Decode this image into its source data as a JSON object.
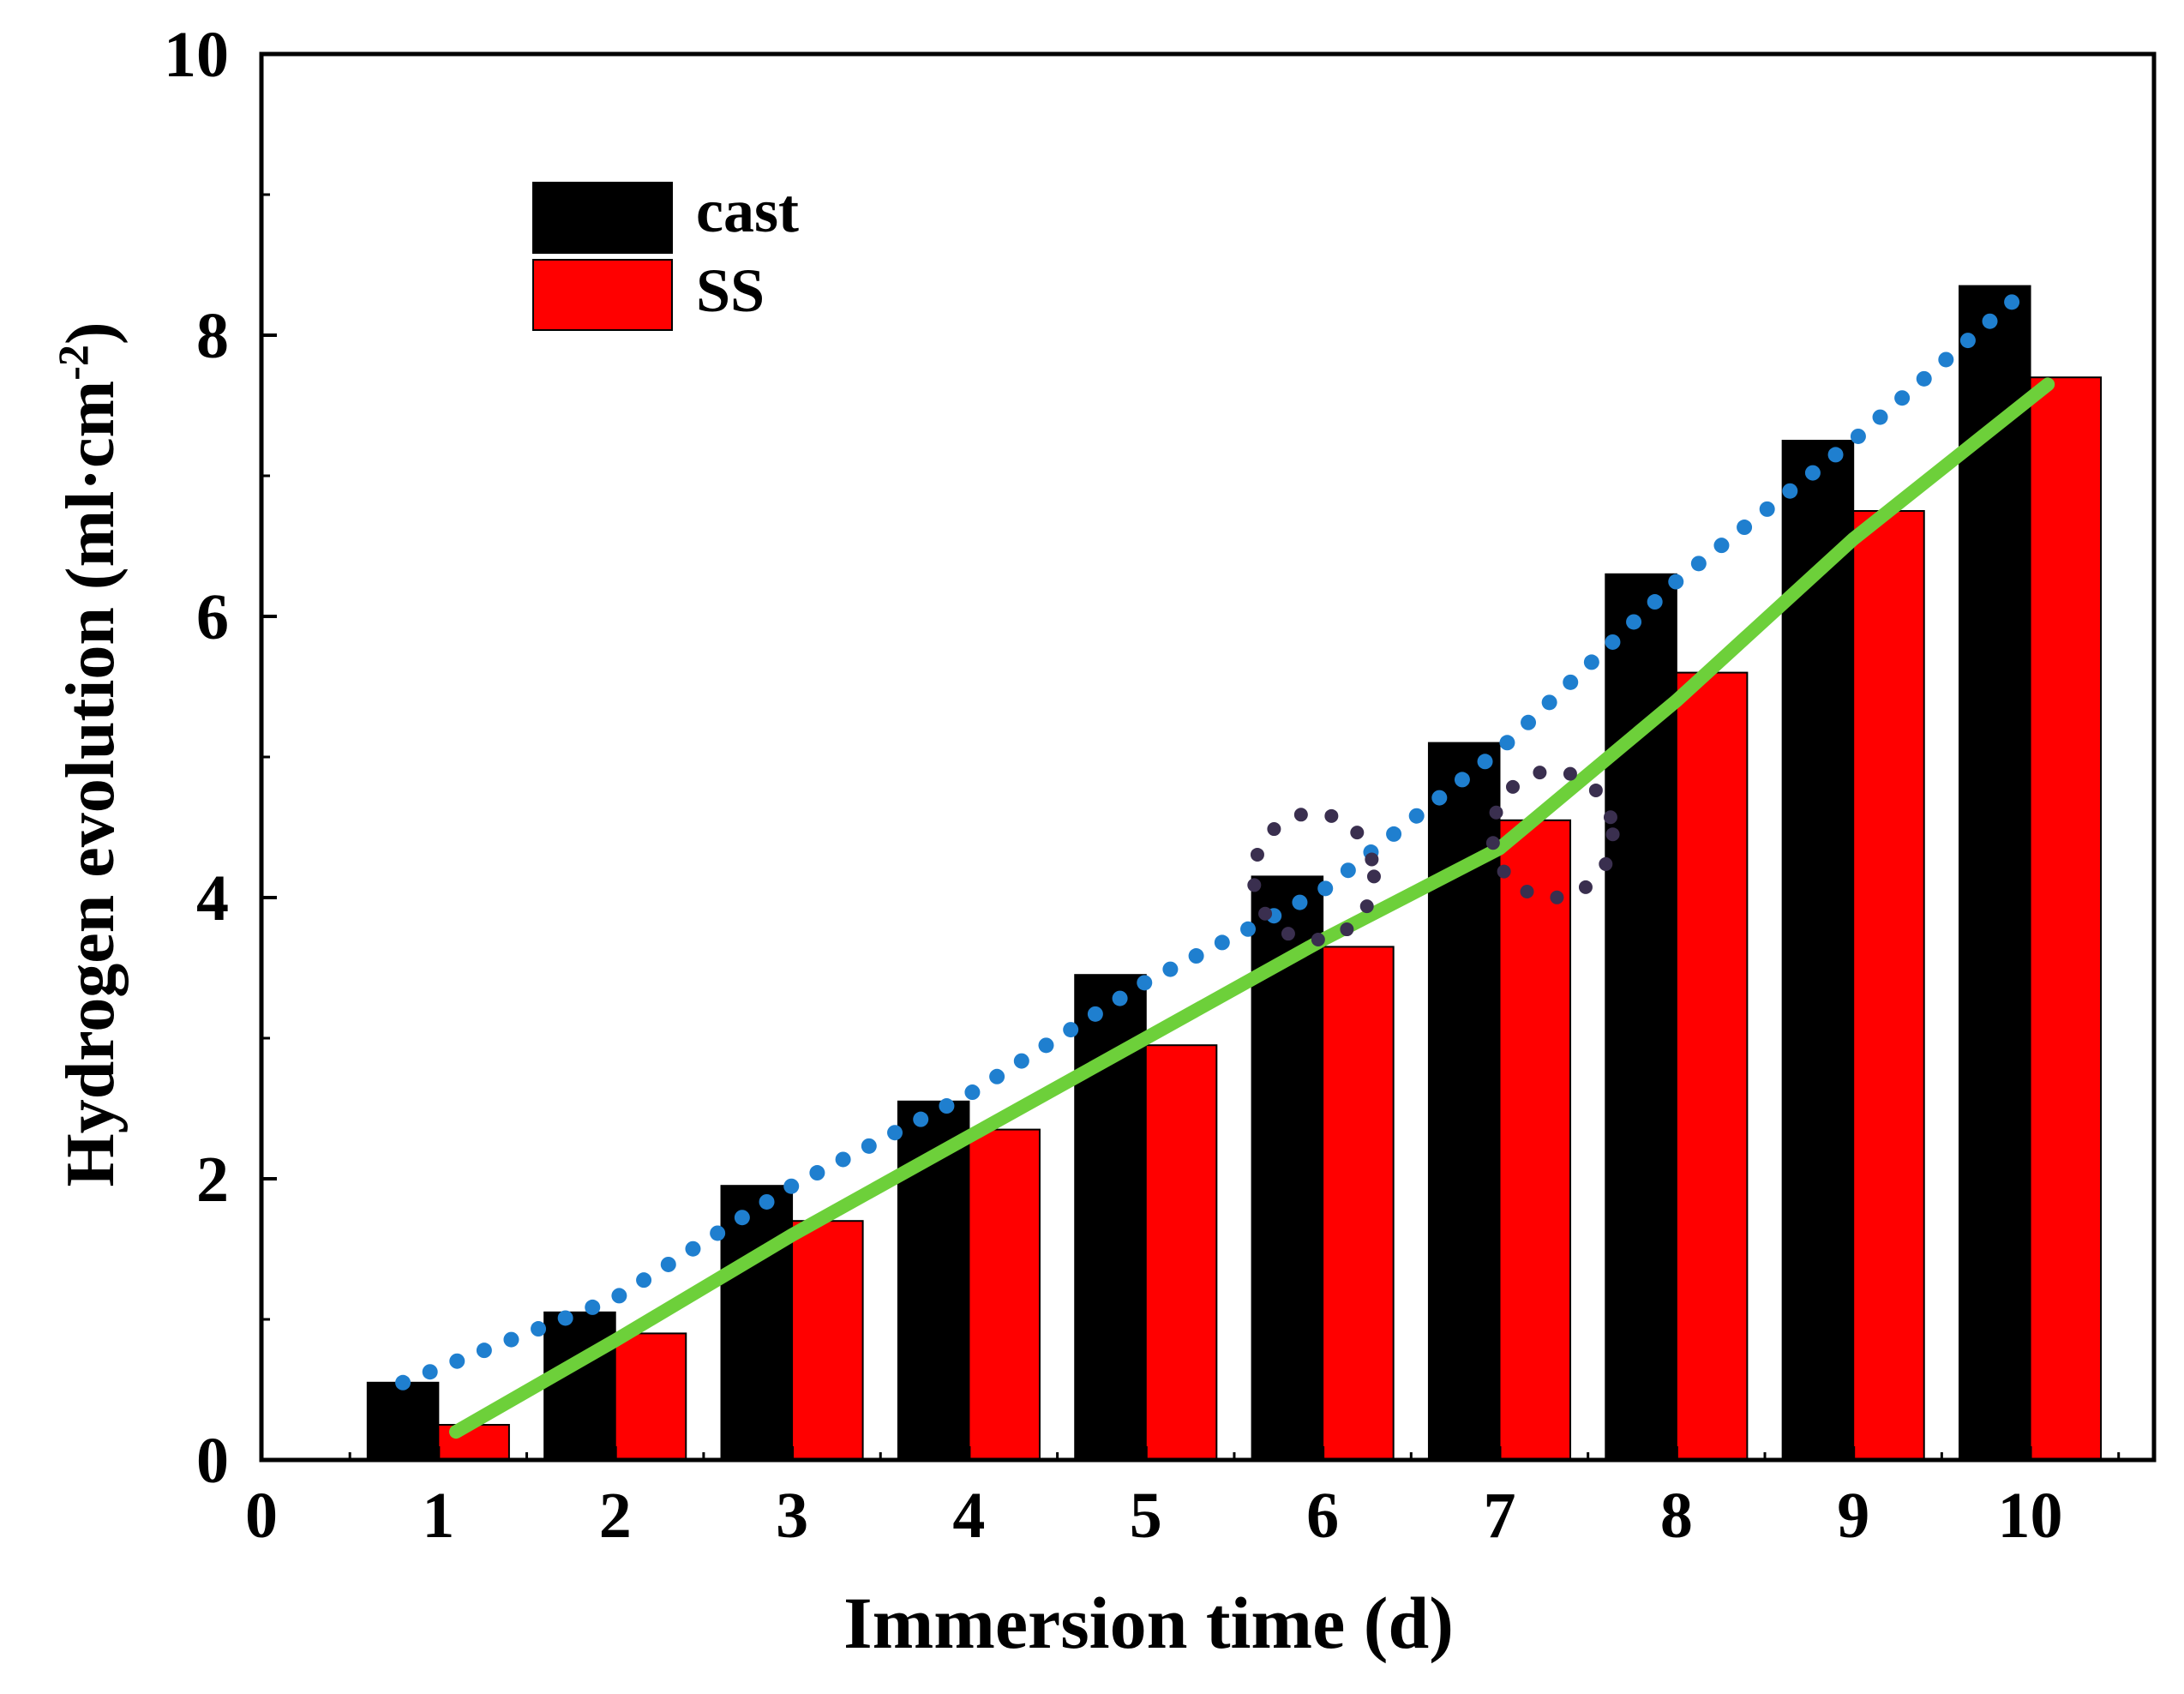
{
  "chart_data": {
    "type": "bar",
    "title": "",
    "xlabel": "Immersion time (d)",
    "ylabel_main": "Hydrogen evolution (ml·cm",
    "ylabel_sup": "-2",
    "ylabel_close": ")",
    "xlim": [
      0,
      10.7
    ],
    "ylim": [
      0,
      10
    ],
    "x_ticks": [
      "0",
      "1",
      "2",
      "3",
      "4",
      "5",
      "6",
      "7",
      "8",
      "9",
      "10"
    ],
    "y_ticks": [
      "0",
      "2",
      "4",
      "6",
      "8",
      "10"
    ],
    "y_minor_step": 1,
    "legend_position": "top-left",
    "categories": [
      1,
      2,
      3,
      4,
      5,
      6,
      7,
      8,
      9,
      10
    ],
    "series": [
      {
        "name": "cast",
        "color": "#000000",
        "values": [
          0.55,
          1.05,
          1.95,
          2.55,
          3.45,
          4.15,
          5.1,
          6.3,
          7.25,
          8.35
        ]
      },
      {
        "name": "SS",
        "color": "#ff0000",
        "values": [
          0.25,
          0.9,
          1.7,
          2.35,
          2.95,
          3.65,
          4.55,
          5.6,
          6.75,
          7.7
        ]
      }
    ],
    "trend_lines": [
      {
        "name": "cast trend",
        "style": "dotted",
        "color": "#1f7fcf",
        "points": [
          [
            0.8,
            0.55
          ],
          [
            2.0,
            1.15
          ],
          [
            3.0,
            1.95
          ],
          [
            4.0,
            2.6
          ],
          [
            5.0,
            3.4
          ],
          [
            6.0,
            4.05
          ],
          [
            7.0,
            5.05
          ],
          [
            8.0,
            6.25
          ],
          [
            9.0,
            7.25
          ],
          [
            10.0,
            8.35
          ]
        ]
      },
      {
        "name": "SS trend",
        "style": "solid",
        "color": "#6dd03a",
        "points": [
          [
            1.1,
            0.2
          ],
          [
            2.0,
            0.85
          ],
          [
            3.0,
            1.6
          ],
          [
            4.0,
            2.3
          ],
          [
            5.0,
            3.0
          ],
          [
            6.0,
            3.7
          ],
          [
            7.0,
            4.35
          ],
          [
            8.0,
            5.4
          ],
          [
            9.0,
            6.55
          ],
          [
            10.1,
            7.65
          ]
        ]
      }
    ],
    "annotations": [
      {
        "name": "dotted-circle-day6",
        "x": 5.95,
        "y": 4.15,
        "rx": 0.34,
        "ry": 0.45,
        "color": "#3a2f4f"
      },
      {
        "name": "dotted-circle-day7",
        "x": 7.3,
        "y": 4.45,
        "rx": 0.34,
        "ry": 0.45,
        "color": "#3a2f4f"
      }
    ]
  }
}
